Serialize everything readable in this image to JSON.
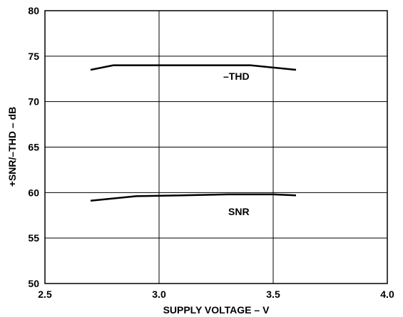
{
  "chart_data": {
    "type": "line",
    "xlabel": "SUPPLY VOLTAGE – V",
    "ylabel": "+SNR/–THD – dB",
    "xlim": [
      2.5,
      4.0
    ],
    "ylim": [
      50,
      80
    ],
    "x_ticks": [
      "2.5",
      "3.0",
      "3.5",
      "4.0"
    ],
    "y_ticks": [
      "50",
      "55",
      "60",
      "65",
      "70",
      "75",
      "80"
    ],
    "grid": true,
    "series": [
      {
        "name": "–THD",
        "x": [
          2.7,
          2.8,
          3.0,
          3.2,
          3.4,
          3.6
        ],
        "y": [
          73.5,
          74.0,
          74.0,
          74.0,
          74.0,
          73.5
        ]
      },
      {
        "name": "SNR",
        "x": [
          2.7,
          2.9,
          3.1,
          3.3,
          3.5,
          3.6
        ],
        "y": [
          59.1,
          59.6,
          59.7,
          59.8,
          59.8,
          59.7
        ]
      }
    ],
    "annotations": [
      "–THD",
      "SNR"
    ]
  }
}
